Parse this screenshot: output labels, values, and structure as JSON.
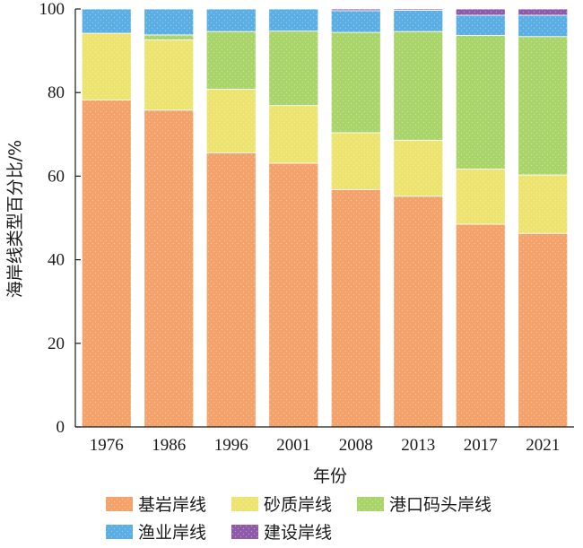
{
  "chart_data": {
    "type": "bar",
    "stacked": true,
    "xlabel": "年份",
    "ylabel": "海岸线类型百分比/%",
    "ylim": [
      0,
      100
    ],
    "yticks": [
      0,
      20,
      40,
      60,
      80,
      100
    ],
    "grid": false,
    "legend_position": "bottom",
    "categories": [
      "1976",
      "1986",
      "1996",
      "2001",
      "2008",
      "2013",
      "2017",
      "2021"
    ],
    "series": [
      {
        "name": "基岩岸线",
        "color": "#f4a26a",
        "values": [
          78.2,
          75.8,
          65.6,
          63.1,
          56.8,
          55.2,
          48.5,
          46.3
        ]
      },
      {
        "name": "砂质岸线",
        "color": "#ede36f",
        "values": [
          16.0,
          16.8,
          15.2,
          13.8,
          13.6,
          13.4,
          13.2,
          14.0
        ]
      },
      {
        "name": "港口码头岸线",
        "color": "#a9d46a",
        "values": [
          0.0,
          1.2,
          13.8,
          17.8,
          24.0,
          26.0,
          32.0,
          33.1
        ]
      },
      {
        "name": "渔业岸线",
        "color": "#5aaee3",
        "values": [
          5.8,
          6.2,
          5.4,
          5.3,
          5.2,
          5.1,
          4.8,
          5.1
        ]
      },
      {
        "name": "建设岸线",
        "color": "#8e5aa8",
        "values": [
          0.0,
          0.0,
          0.0,
          0.0,
          0.4,
          0.3,
          1.5,
          1.5
        ]
      }
    ]
  }
}
